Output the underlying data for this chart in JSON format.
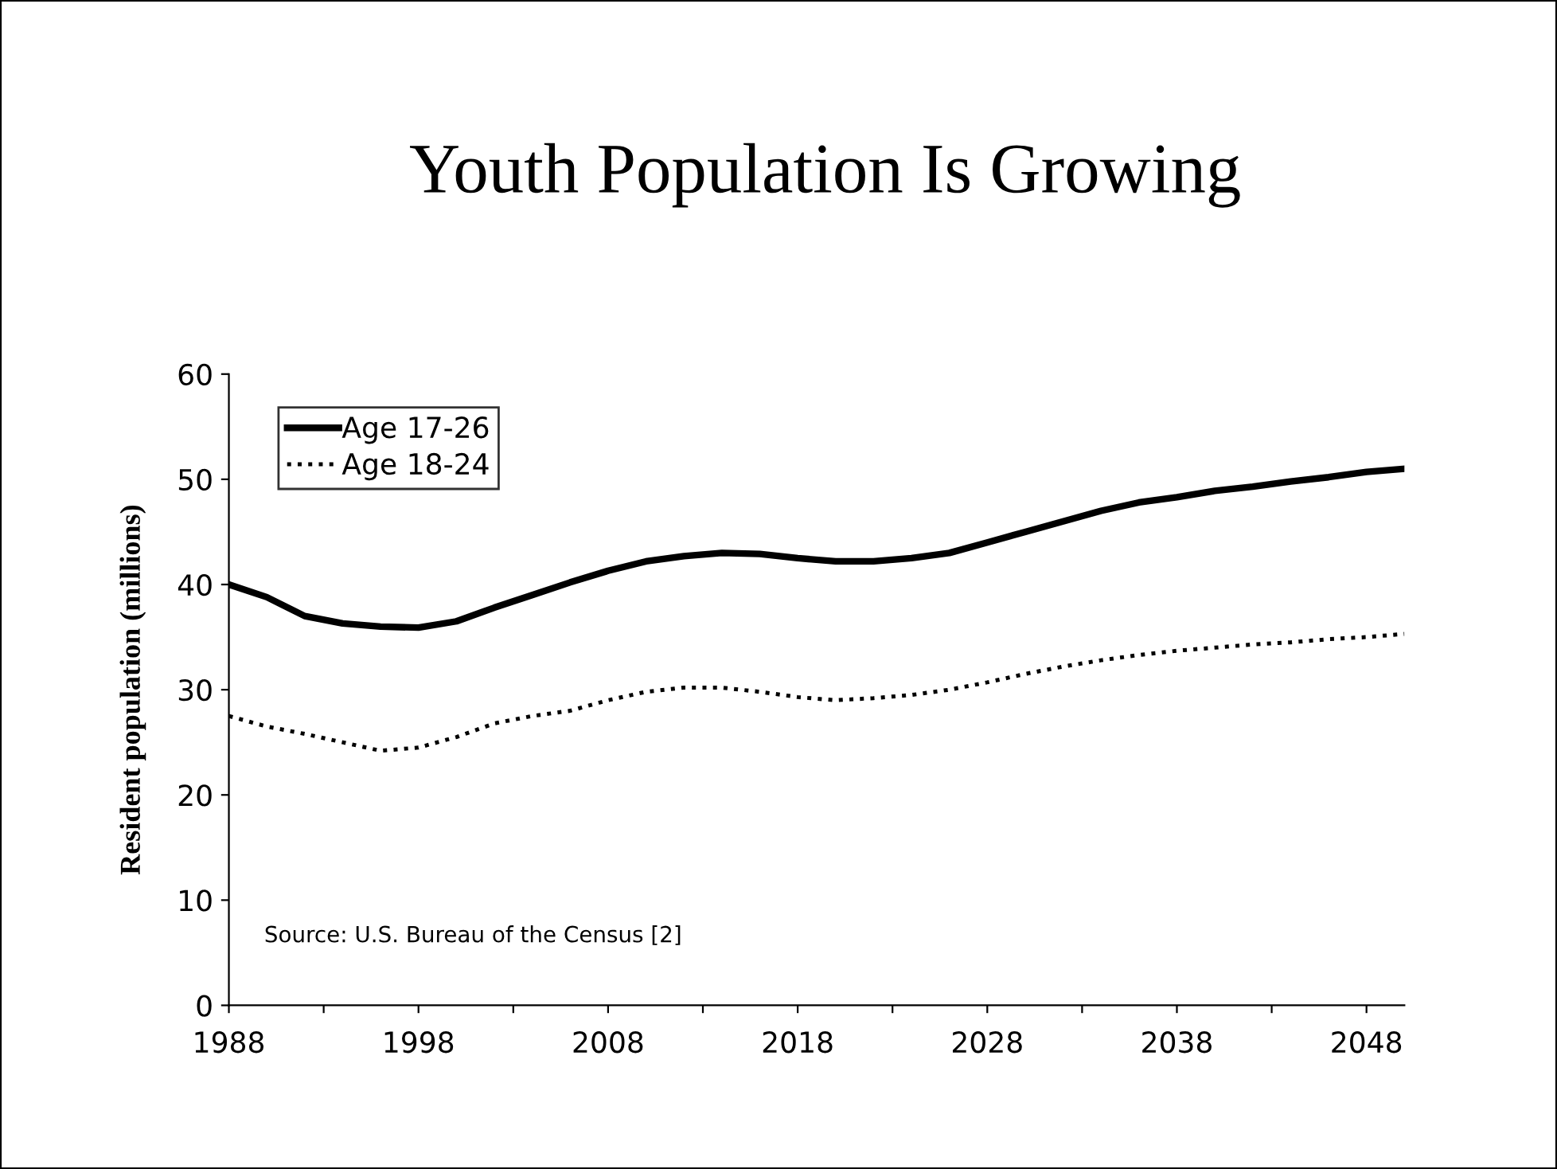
{
  "chart_data": {
    "type": "line",
    "title": "Youth Population Is Growing",
    "ylabel": "Resident population (millions)",
    "x": [
      1988,
      1990,
      1992,
      1994,
      1996,
      1998,
      2000,
      2002,
      2004,
      2006,
      2008,
      2010,
      2012,
      2014,
      2016,
      2018,
      2020,
      2022,
      2024,
      2026,
      2028,
      2030,
      2032,
      2034,
      2036,
      2038,
      2040,
      2042,
      2044,
      2046,
      2048,
      2050
    ],
    "series": [
      {
        "name": "Age 17-26",
        "color": "#000000",
        "line_style": "solid",
        "values": [
          40,
          38.8,
          37,
          36.3,
          36,
          35.9,
          36.5,
          37.8,
          39,
          40.2,
          41.3,
          42.2,
          42.7,
          43,
          42.9,
          42.5,
          42.2,
          42.2,
          42.5,
          43,
          44,
          45,
          46,
          47,
          47.8,
          48.3,
          48.9,
          49.3,
          49.8,
          50.2,
          50.7,
          51
        ]
      },
      {
        "name": "Age 18-24",
        "color": "#000000",
        "line_style": "dotted",
        "values": [
          27.5,
          26.5,
          25.8,
          25,
          24.2,
          24.5,
          25.5,
          26.8,
          27.5,
          28,
          29,
          29.8,
          30.2,
          30.2,
          29.8,
          29.3,
          29,
          29.2,
          29.5,
          30,
          30.7,
          31.5,
          32.2,
          32.8,
          33.3,
          33.7,
          34,
          34.3,
          34.5,
          34.8,
          35,
          35.3
        ]
      }
    ],
    "xlim": [
      1988,
      2050
    ],
    "xticks": [
      1988,
      {
        "value": 1993,
        "label": null
      },
      1998,
      {
        "value": 2003,
        "label": null
      },
      2008,
      {
        "value": 2013,
        "label": null
      },
      2018,
      {
        "value": 2023,
        "label": null
      },
      2028,
      {
        "value": 2033,
        "label": null
      },
      2038,
      {
        "value": 2043,
        "label": null
      },
      2048
    ],
    "ylim": [
      0,
      60
    ],
    "yticks": [
      0,
      10,
      20,
      30,
      40,
      50,
      60
    ],
    "legend": "top left",
    "grid": false,
    "annotations": [
      "Source: U.S. Bureau of the Census [2]"
    ]
  }
}
